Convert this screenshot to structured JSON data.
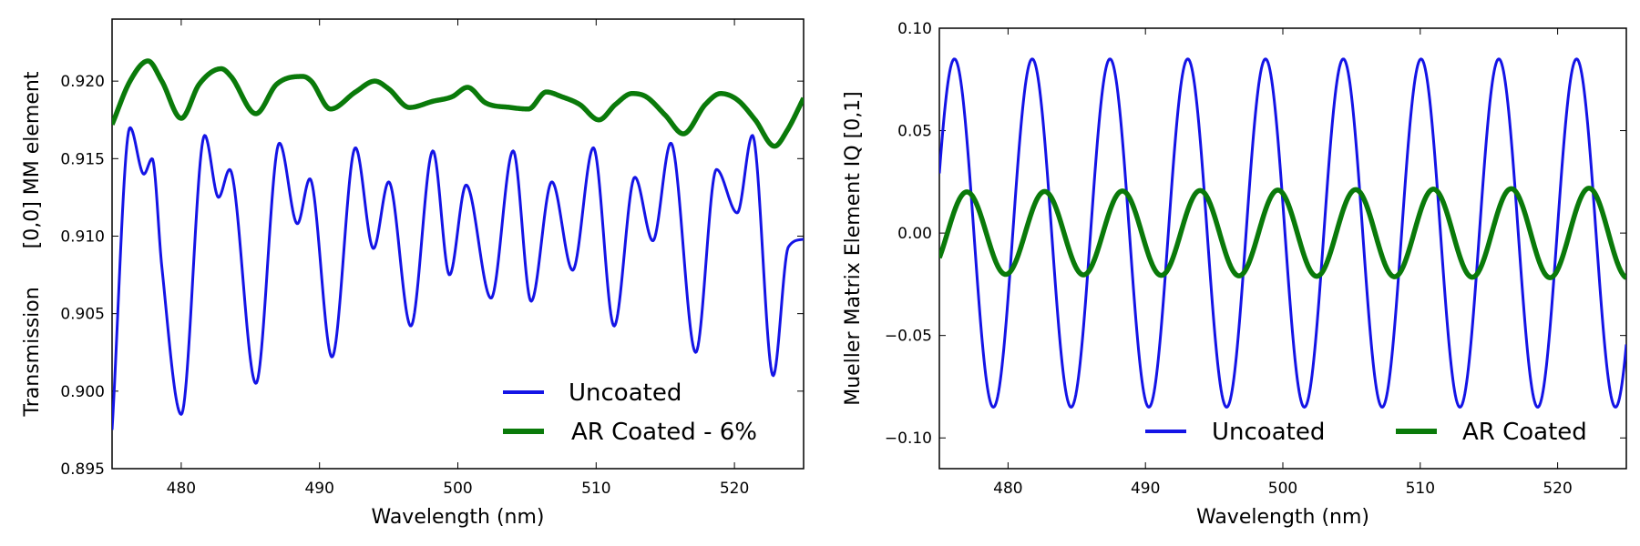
{
  "chart_data": [
    {
      "type": "line",
      "xlabel": "Wavelength (nm)",
      "ylabel": "Transmission      [0,0] MM element",
      "xlim": [
        475,
        525
      ],
      "ylim": [
        0.895,
        0.924
      ],
      "xticks": [
        480,
        490,
        500,
        510,
        520
      ],
      "yticks": [
        0.895,
        0.9,
        0.905,
        0.91,
        0.915,
        0.92
      ],
      "ytick_labels": [
        "0.895",
        "0.900",
        "0.905",
        "0.910",
        "0.915",
        "0.920"
      ],
      "legend": "lower-right",
      "series": [
        {
          "name": "Uncoated",
          "color": "#1414e6",
          "x": [
            475.0,
            476.3,
            477.3,
            477.9,
            478.6,
            480.0,
            481.7,
            482.7,
            483.5,
            485.4,
            487.1,
            488.4,
            489.3,
            490.9,
            492.6,
            493.9,
            495.0,
            496.6,
            498.2,
            499.4,
            500.6,
            502.4,
            504.0,
            505.3,
            506.8,
            508.3,
            509.8,
            511.3,
            512.8,
            514.1,
            515.4,
            517.2,
            518.7,
            520.2,
            521.3,
            522.8,
            523.9,
            525.0
          ],
          "y": [
            0.8975,
            0.917,
            0.914,
            0.915,
            0.908,
            0.8985,
            0.9165,
            0.9125,
            0.9143,
            0.9005,
            0.916,
            0.9108,
            0.9137,
            0.9022,
            0.9157,
            0.9092,
            0.9135,
            0.9042,
            0.9155,
            0.9075,
            0.9133,
            0.906,
            0.9155,
            0.9058,
            0.9135,
            0.9078,
            0.9157,
            0.9042,
            0.9138,
            0.9097,
            0.916,
            0.9025,
            0.9143,
            0.9115,
            0.9165,
            0.901,
            0.9093,
            0.9098
          ]
        },
        {
          "name": "AR Coated - 6%",
          "color": "#0a7a0a",
          "x": [
            475.0,
            476.3,
            477.6,
            478.6,
            480.0,
            481.3,
            482.9,
            483.6,
            485.4,
            486.9,
            488.8,
            489.4,
            490.8,
            492.6,
            494.0,
            495.0,
            496.5,
            498.2,
            499.6,
            500.7,
            502.0,
            503.8,
            505.1,
            506.4,
            507.5,
            508.8,
            510.2,
            511.4,
            512.6,
            513.6,
            515.0,
            516.3,
            517.9,
            519.0,
            520.2,
            521.5,
            522.9,
            523.8,
            525.0
          ],
          "y": [
            0.9172,
            0.92,
            0.9213,
            0.92,
            0.9176,
            0.9198,
            0.9208,
            0.9203,
            0.9179,
            0.9198,
            0.9203,
            0.92,
            0.9182,
            0.9193,
            0.92,
            0.9195,
            0.9183,
            0.9187,
            0.919,
            0.9196,
            0.9186,
            0.9183,
            0.9182,
            0.9193,
            0.919,
            0.9185,
            0.9175,
            0.9185,
            0.9192,
            0.919,
            0.9178,
            0.9166,
            0.9185,
            0.9192,
            0.9188,
            0.9175,
            0.9158,
            0.9168,
            0.9189
          ]
        }
      ]
    },
    {
      "type": "line",
      "xlabel": "Wavelength (nm)",
      "ylabel": "Mueller Matrix Element IQ [0,1]",
      "xlim": [
        475,
        525
      ],
      "ylim": [
        -0.115,
        0.1
      ],
      "xticks": [
        480,
        490,
        500,
        510,
        520
      ],
      "yticks": [
        -0.1,
        -0.05,
        0.0,
        0.05,
        0.1
      ],
      "ytick_labels": [
        "−0.10",
        "−0.05",
        "0.00",
        "0.05",
        "0.10"
      ],
      "legend": "lower-right",
      "series": [
        {
          "name": "Uncoated",
          "color": "#1414e6",
          "amplitude": 0.085,
          "period_nm": 5.66,
          "first_peak_nm": 476.1
        },
        {
          "name": "AR Coated",
          "color": "#0a7a0a",
          "amplitude_start": 0.02,
          "amplitude_end": 0.022,
          "period_nm": 5.66,
          "first_peak_nm": 476.1,
          "phase_shift_nm": 0.9
        }
      ]
    }
  ]
}
